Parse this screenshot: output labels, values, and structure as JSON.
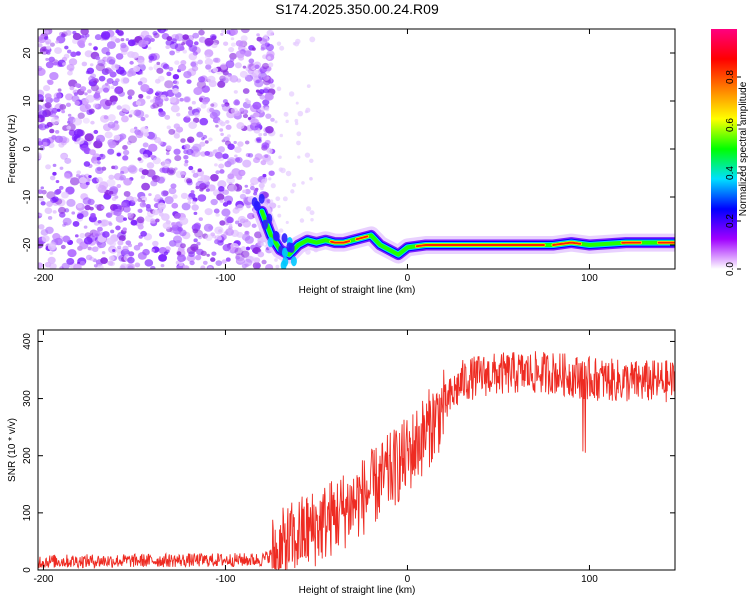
{
  "title": "S174.2025.350.00.24.R09",
  "chart_data": [
    {
      "type": "heatmap",
      "name": "spectrogram",
      "xlabel": "Height of straight line (km)",
      "ylabel": "Frequency (Hz)",
      "xlim": [
        -203,
        147
      ],
      "ylim": [
        -25,
        25
      ],
      "xticks": [
        -200,
        -100,
        0,
        100
      ],
      "yticks": [
        -20,
        -10,
        0,
        10,
        20
      ],
      "colorbar": {
        "label": "Normalized spectral amplitude",
        "range": [
          0,
          1
        ],
        "ticks": [
          "0.0",
          "0.2",
          "0.4",
          "0.6",
          "0.8"
        ],
        "colors": [
          "#ffffff",
          "#a000ff",
          "#0000ff",
          "#00e0ff",
          "#00ff00",
          "#ffff00",
          "#ff8000",
          "#ff0000",
          "#ff0080"
        ]
      },
      "ridge_trace": {
        "x": [
          -80,
          -75,
          -70,
          -65,
          -60,
          -55,
          -50,
          -45,
          -40,
          -35,
          -30,
          -25,
          -20,
          -15,
          -10,
          -5,
          0,
          10,
          20,
          40,
          60,
          80,
          90,
          100,
          120,
          147
        ],
        "y": [
          -13,
          -18,
          -21,
          -22,
          -20,
          -19,
          -19.5,
          -19,
          -19.5,
          -19.5,
          -19,
          -18.5,
          -18,
          -20,
          -21,
          -22,
          -20.5,
          -20,
          -20,
          -20,
          -20,
          -20,
          -19.5,
          -20,
          -19.5,
          -19.5
        ]
      },
      "noise_region_x": [
        -203,
        -80
      ]
    },
    {
      "type": "line",
      "name": "snr",
      "xlabel": "Height of straight line (km)",
      "ylabel": "SNR (10 * v/v)",
      "xlim": [
        -203,
        147
      ],
      "ylim": [
        0,
        420
      ],
      "xticks": [
        -200,
        -100,
        0,
        100
      ],
      "yticks": [
        0,
        100,
        200,
        300,
        400
      ],
      "color": "#ee2b22",
      "trend": {
        "x": [
          -203,
          -80,
          -70,
          -60,
          -50,
          -40,
          -30,
          -20,
          -10,
          0,
          10,
          20,
          30,
          40,
          60,
          80,
          100,
          120,
          147
        ],
        "y": [
          15,
          18,
          35,
          60,
          75,
          95,
          115,
          140,
          170,
          200,
          240,
          285,
          330,
          340,
          345,
          345,
          335,
          330,
          330
        ]
      }
    }
  ]
}
